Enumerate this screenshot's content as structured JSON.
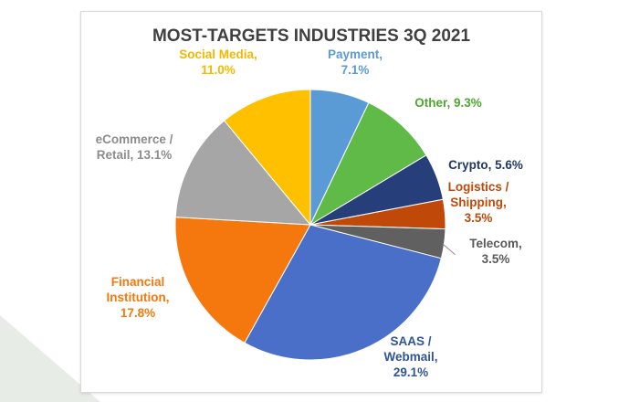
{
  "background": {
    "corner_color": "#e8ece6"
  },
  "chart_data": {
    "type": "pie",
    "title": "MOST-TARGETS INDUSTRIES 3Q 2021",
    "slices": [
      {
        "name": "Payment",
        "value": 7.1,
        "color": "#5b9bd5",
        "label_lines": [
          "Payment,",
          "7.1%"
        ]
      },
      {
        "name": "Other",
        "value": 9.3,
        "color": "#5fba47",
        "label_lines": [
          "Other, 9.3%"
        ]
      },
      {
        "name": "Crypto",
        "value": 5.6,
        "color": "#263f7a",
        "label_lines": [
          "Crypto, 5.6%"
        ]
      },
      {
        "name": "Logistics / Shipping",
        "value": 3.5,
        "color": "#c0490a",
        "label_lines": [
          "Logistics /",
          "Shipping,",
          "3.5%"
        ]
      },
      {
        "name": "Telecom",
        "value": 3.5,
        "color": "#606060",
        "label_lines": [
          "Telecom,",
          "3.5%"
        ]
      },
      {
        "name": "SAAS / Webmail",
        "value": 29.1,
        "color": "#4a6fc9",
        "label_lines": [
          "SAAS /",
          "Webmail,",
          "29.1%"
        ]
      },
      {
        "name": "Financial Institution",
        "value": 17.8,
        "color": "#f5780f",
        "label_lines": [
          "Financial",
          "Institution,",
          "17.8%"
        ]
      },
      {
        "name": "eCommerce / Retail",
        "value": 13.1,
        "color": "#a6a6a6",
        "label_lines": [
          "eCommerce /",
          "Retail, 13.1%"
        ]
      },
      {
        "name": "Social Media",
        "value": 11.0,
        "color": "#ffc000",
        "label_lines": [
          "Social Media,",
          "11.0%"
        ]
      }
    ],
    "label_colors": {
      "Payment": "#5b9bd5",
      "Other": "#4ea72e",
      "Crypto": "#203864",
      "Logistics / Shipping": "#c0490a",
      "Telecom": "#595959",
      "SAAS / Webmail": "#2f5597",
      "Financial Institution": "#f5780f",
      "eCommerce / Retail": "#8c8c8c",
      "Social Media": "#f2b900"
    },
    "start_angle_deg": 0,
    "direction": "clockwise",
    "legend": "none"
  }
}
